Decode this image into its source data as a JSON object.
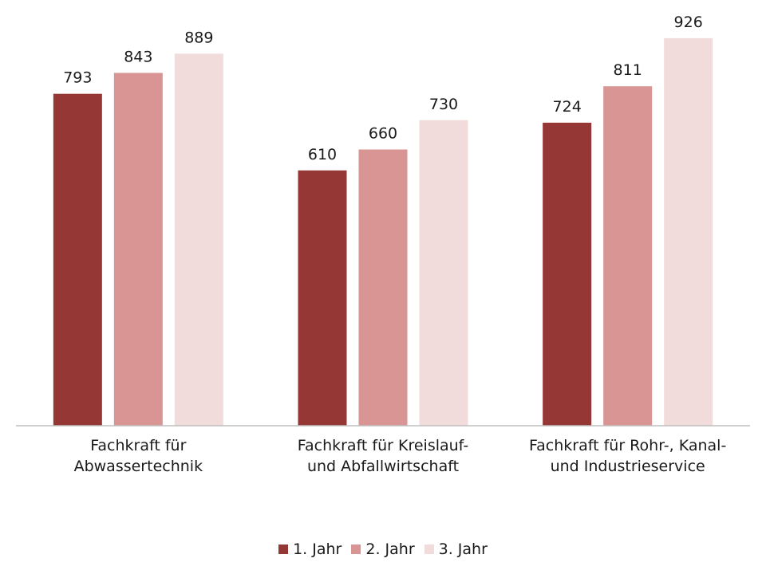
{
  "chart_data": {
    "type": "bar",
    "categories": [
      "Fachkraft für\nAbwassertechnik",
      "Fachkraft für Kreislauf-\nund Abfallwirtschaft",
      "Fachkraft für Rohr-, Kanal-\nund Industrieservice"
    ],
    "series": [
      {
        "name": "1. Jahr",
        "values": [
          793,
          610,
          724
        ],
        "color": "#953735"
      },
      {
        "name": "2. Jahr",
        "values": [
          843,
          660,
          811
        ],
        "color": "#d99594"
      },
      {
        "name": "3. Jahr",
        "values": [
          889,
          730,
          926
        ],
        "color": "#f2dcdb"
      }
    ],
    "title": "",
    "xlabel": "",
    "ylabel": "",
    "ylim": [
      0,
      1000
    ],
    "grid": false,
    "legend": "bottom",
    "data_labels": true
  }
}
